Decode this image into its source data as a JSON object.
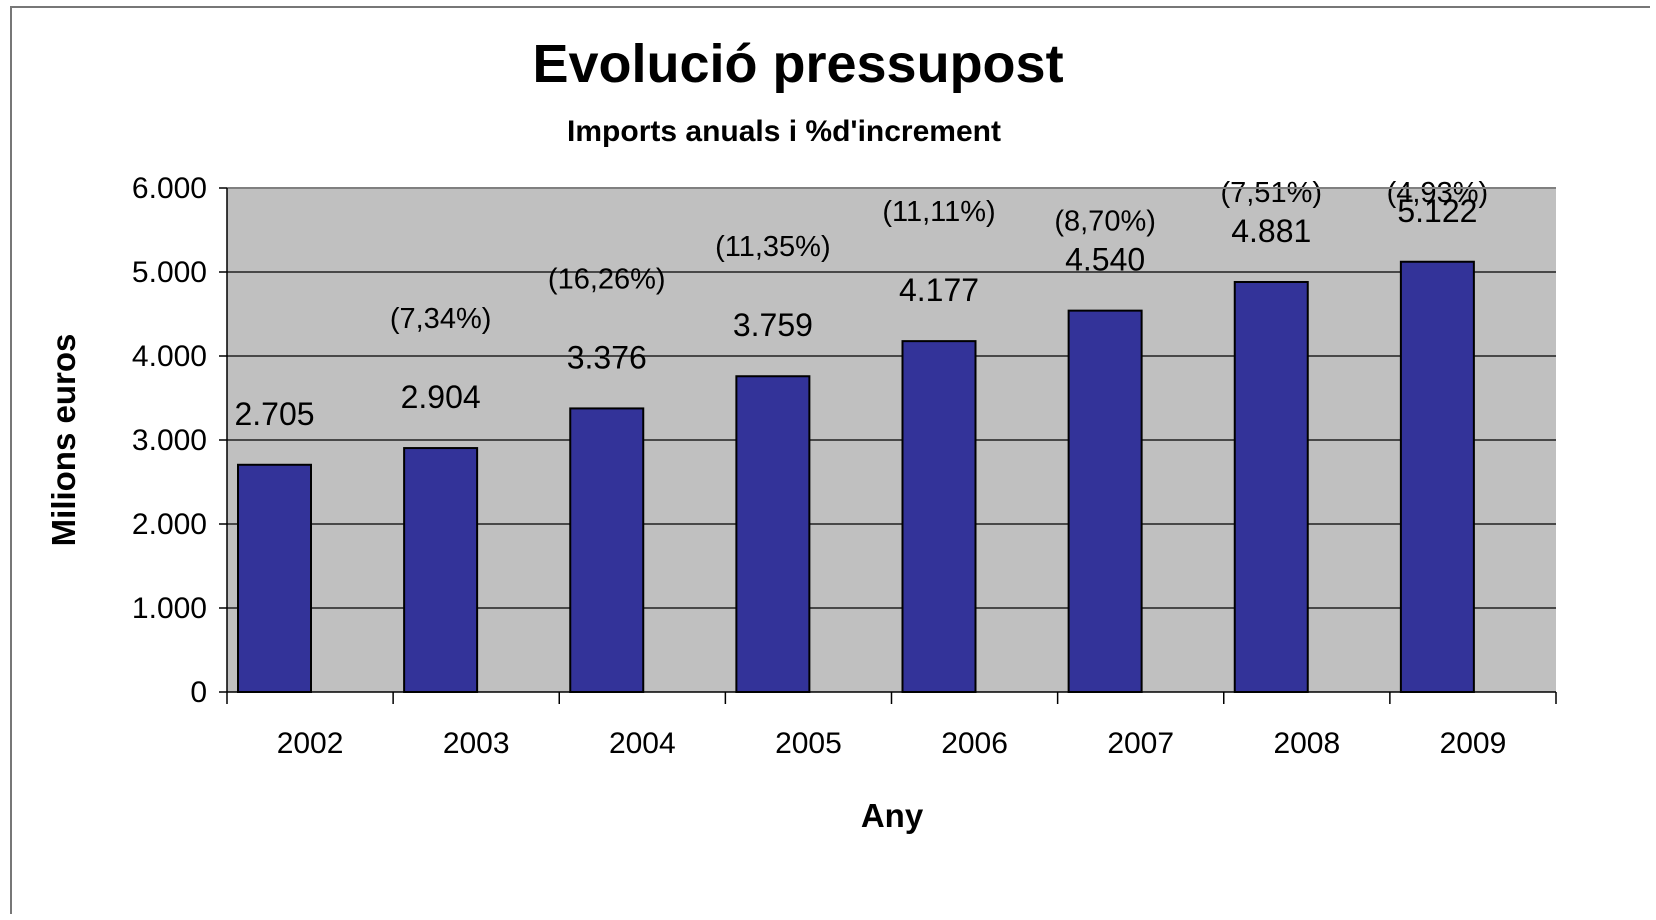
{
  "chart_data": {
    "type": "bar",
    "title": "Evolució pressupost",
    "subtitle": "Imports anuals i %d'increment",
    "xlabel": "Any",
    "ylabel": "Milions euros",
    "categories": [
      "2002",
      "2003",
      "2004",
      "2005",
      "2006",
      "2007",
      "2008",
      "2009"
    ],
    "values": [
      2705,
      2904,
      3376,
      3759,
      4177,
      4540,
      4881,
      5122
    ],
    "value_labels": [
      "2.705",
      "2.904",
      "3.376",
      "3.759",
      "4.177",
      "4.540",
      "4.881",
      "5.122"
    ],
    "increment_labels": [
      "",
      "(7,34%)",
      "(16,26%)",
      "(11,35%)",
      "(11,11%)",
      "(8,70%)",
      "(7,51%)",
      "(4,93%)"
    ],
    "ylim": [
      0,
      6000
    ],
    "yticks": [
      0,
      1000,
      2000,
      3000,
      4000,
      5000,
      6000
    ],
    "ytick_labels": [
      "0",
      "1.000",
      "2.000",
      "3.000",
      "4.000",
      "5.000",
      "6.000"
    ],
    "grid": true,
    "bar_color": "#333399",
    "plot_background": "#c0c0c0"
  }
}
